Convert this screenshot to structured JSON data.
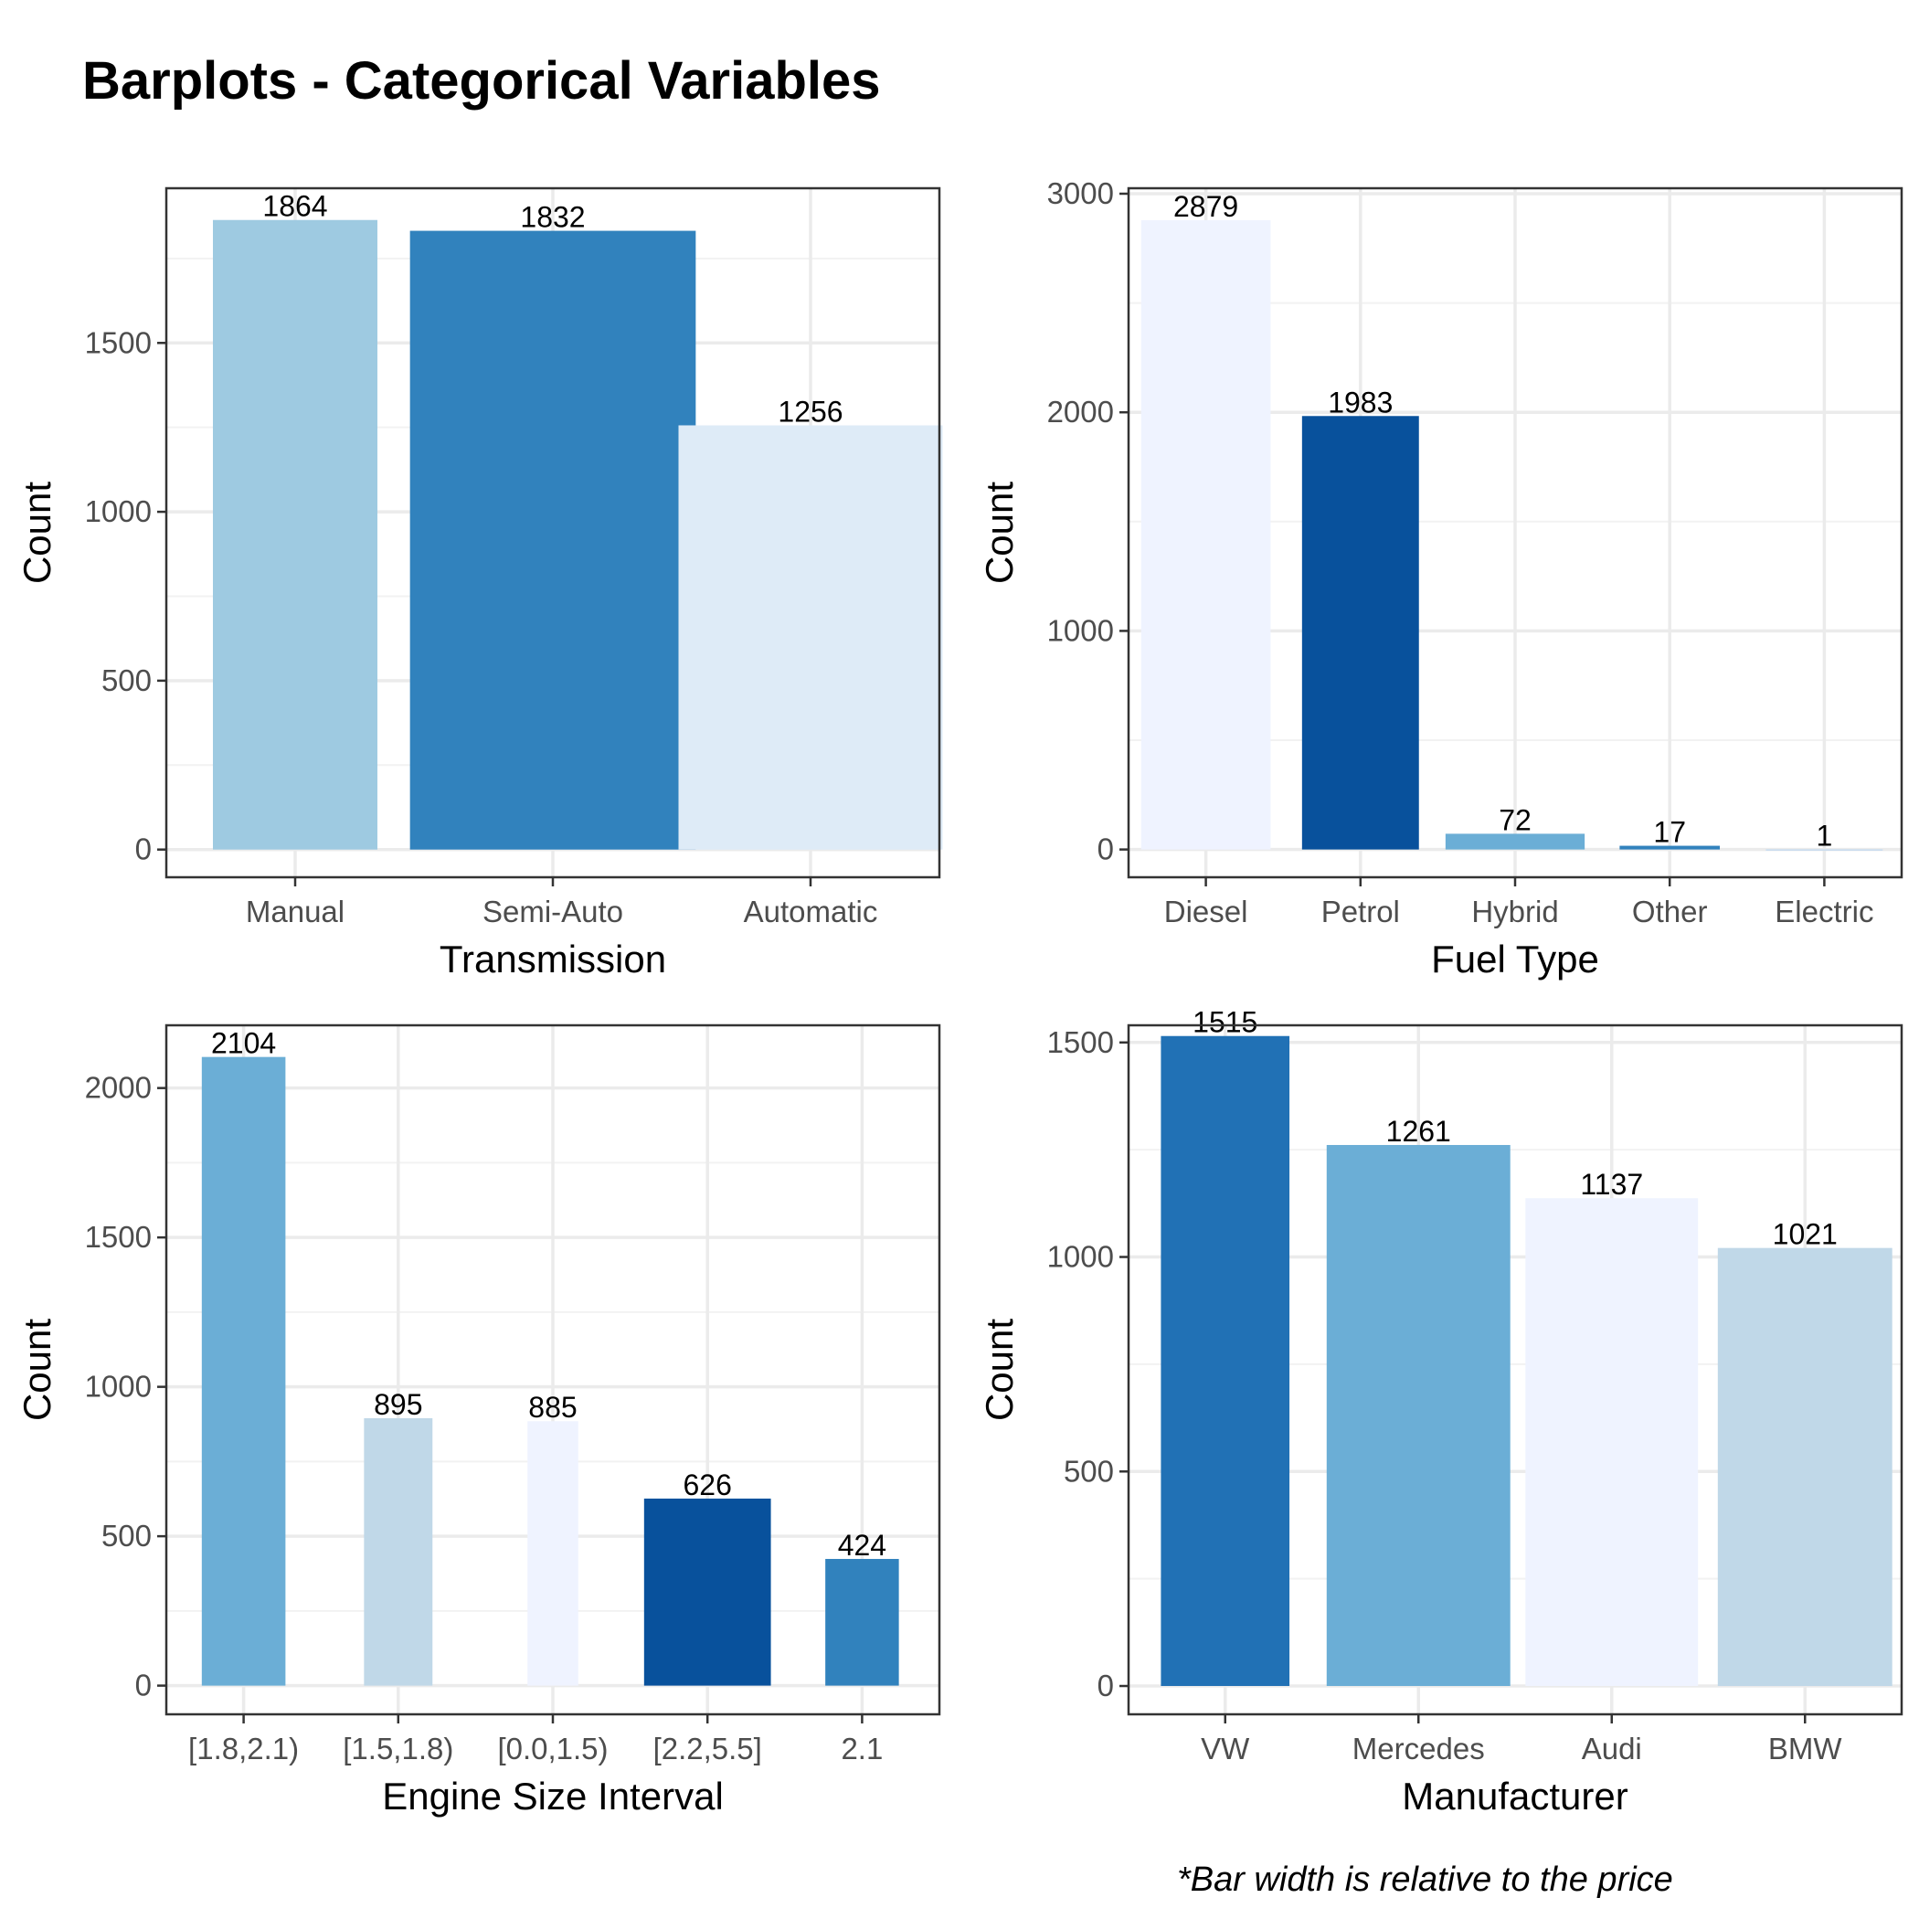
{
  "title": "Barplots - Categorical Variables",
  "footnote": "*Bar width is relative to the price",
  "chart_data": [
    {
      "type": "bar",
      "xlabel": "Transmission",
      "ylabel": "Count",
      "categories": [
        "Manual",
        "Semi-Auto",
        "Automatic"
      ],
      "values": [
        1864,
        1832,
        1256
      ],
      "colors": [
        "#9ecae1",
        "#3182bd",
        "#deebf7"
      ],
      "relative_widths": [
        0.76,
        1.32,
        1.22
      ],
      "yticks": [
        0,
        500,
        1000,
        1500
      ],
      "ylim": [
        -82,
        1958
      ],
      "grid": true
    },
    {
      "type": "bar",
      "xlabel": "Fuel Type",
      "ylabel": "Count",
      "categories": [
        "Diesel",
        "Petrol",
        "Hybrid",
        "Other",
        "Electric"
      ],
      "values": [
        2879,
        1983,
        72,
        17,
        1
      ],
      "colors": [
        "#eff3ff",
        "#08519c",
        "#6baed6",
        "#3182bd",
        "#c6dbef"
      ],
      "relative_widths": [
        0.93,
        0.84,
        1.0,
        0.72,
        0.84
      ],
      "yticks": [
        0,
        1000,
        2000,
        3000
      ],
      "ylim": [
        -127,
        3025
      ],
      "grid": true
    },
    {
      "type": "bar",
      "xlabel": "Engine Size Interval",
      "ylabel": "Count",
      "categories": [
        "[1.8,2.1)",
        "[1.5,1.8)",
        "[0.0,1.5)",
        "[2.2,5.5]",
        "2.1"
      ],
      "values": [
        2104,
        895,
        885,
        626,
        424
      ],
      "colors": [
        "#6baed6",
        "#c0d8e8",
        "#eff3ff",
        "#08519c",
        "#3182bd"
      ],
      "relative_widths": [
        0.66,
        0.54,
        0.4,
        1.0,
        0.58
      ],
      "yticks": [
        0,
        500,
        1000,
        1500,
        2000
      ],
      "ylim": [
        -96,
        2210
      ],
      "grid": true
    },
    {
      "type": "bar",
      "xlabel": "Manufacturer",
      "ylabel": "Count",
      "categories": [
        "VW",
        "Mercedes",
        "Audi",
        "BMW"
      ],
      "values": [
        1515,
        1261,
        1137,
        1021
      ],
      "colors": [
        "#2171b5",
        "#6baed6",
        "#eff3ff",
        "#c0d8e8"
      ],
      "relative_widths": [
        0.7,
        1.0,
        0.94,
        0.95
      ],
      "yticks": [
        0,
        500,
        1000,
        1500
      ],
      "ylim": [
        -66,
        1540
      ],
      "grid": true
    }
  ]
}
